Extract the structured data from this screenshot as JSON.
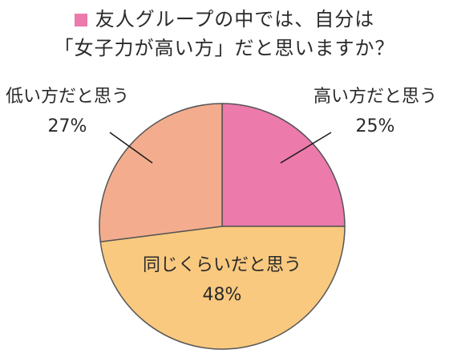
{
  "chart_data": {
    "type": "pie",
    "title": "友人グループの中では、自分は",
    "subtitle": "「女子力が高い方」だと思いますか？",
    "legend_color": "#ec7aab",
    "slices": [
      {
        "label": "高い方だと思う",
        "value": 25,
        "value_label": "25%",
        "color": "#ec7aab"
      },
      {
        "label": "同じくらいだと思う",
        "value": 48,
        "value_label": "48%",
        "color": "#f9c97f"
      },
      {
        "label": "低い方だと思う",
        "value": 27,
        "value_label": "27%",
        "color": "#f3ad8e"
      }
    ],
    "start_angle": "12 o'clock",
    "direction": "clockwise",
    "outline_color": "#555555"
  }
}
